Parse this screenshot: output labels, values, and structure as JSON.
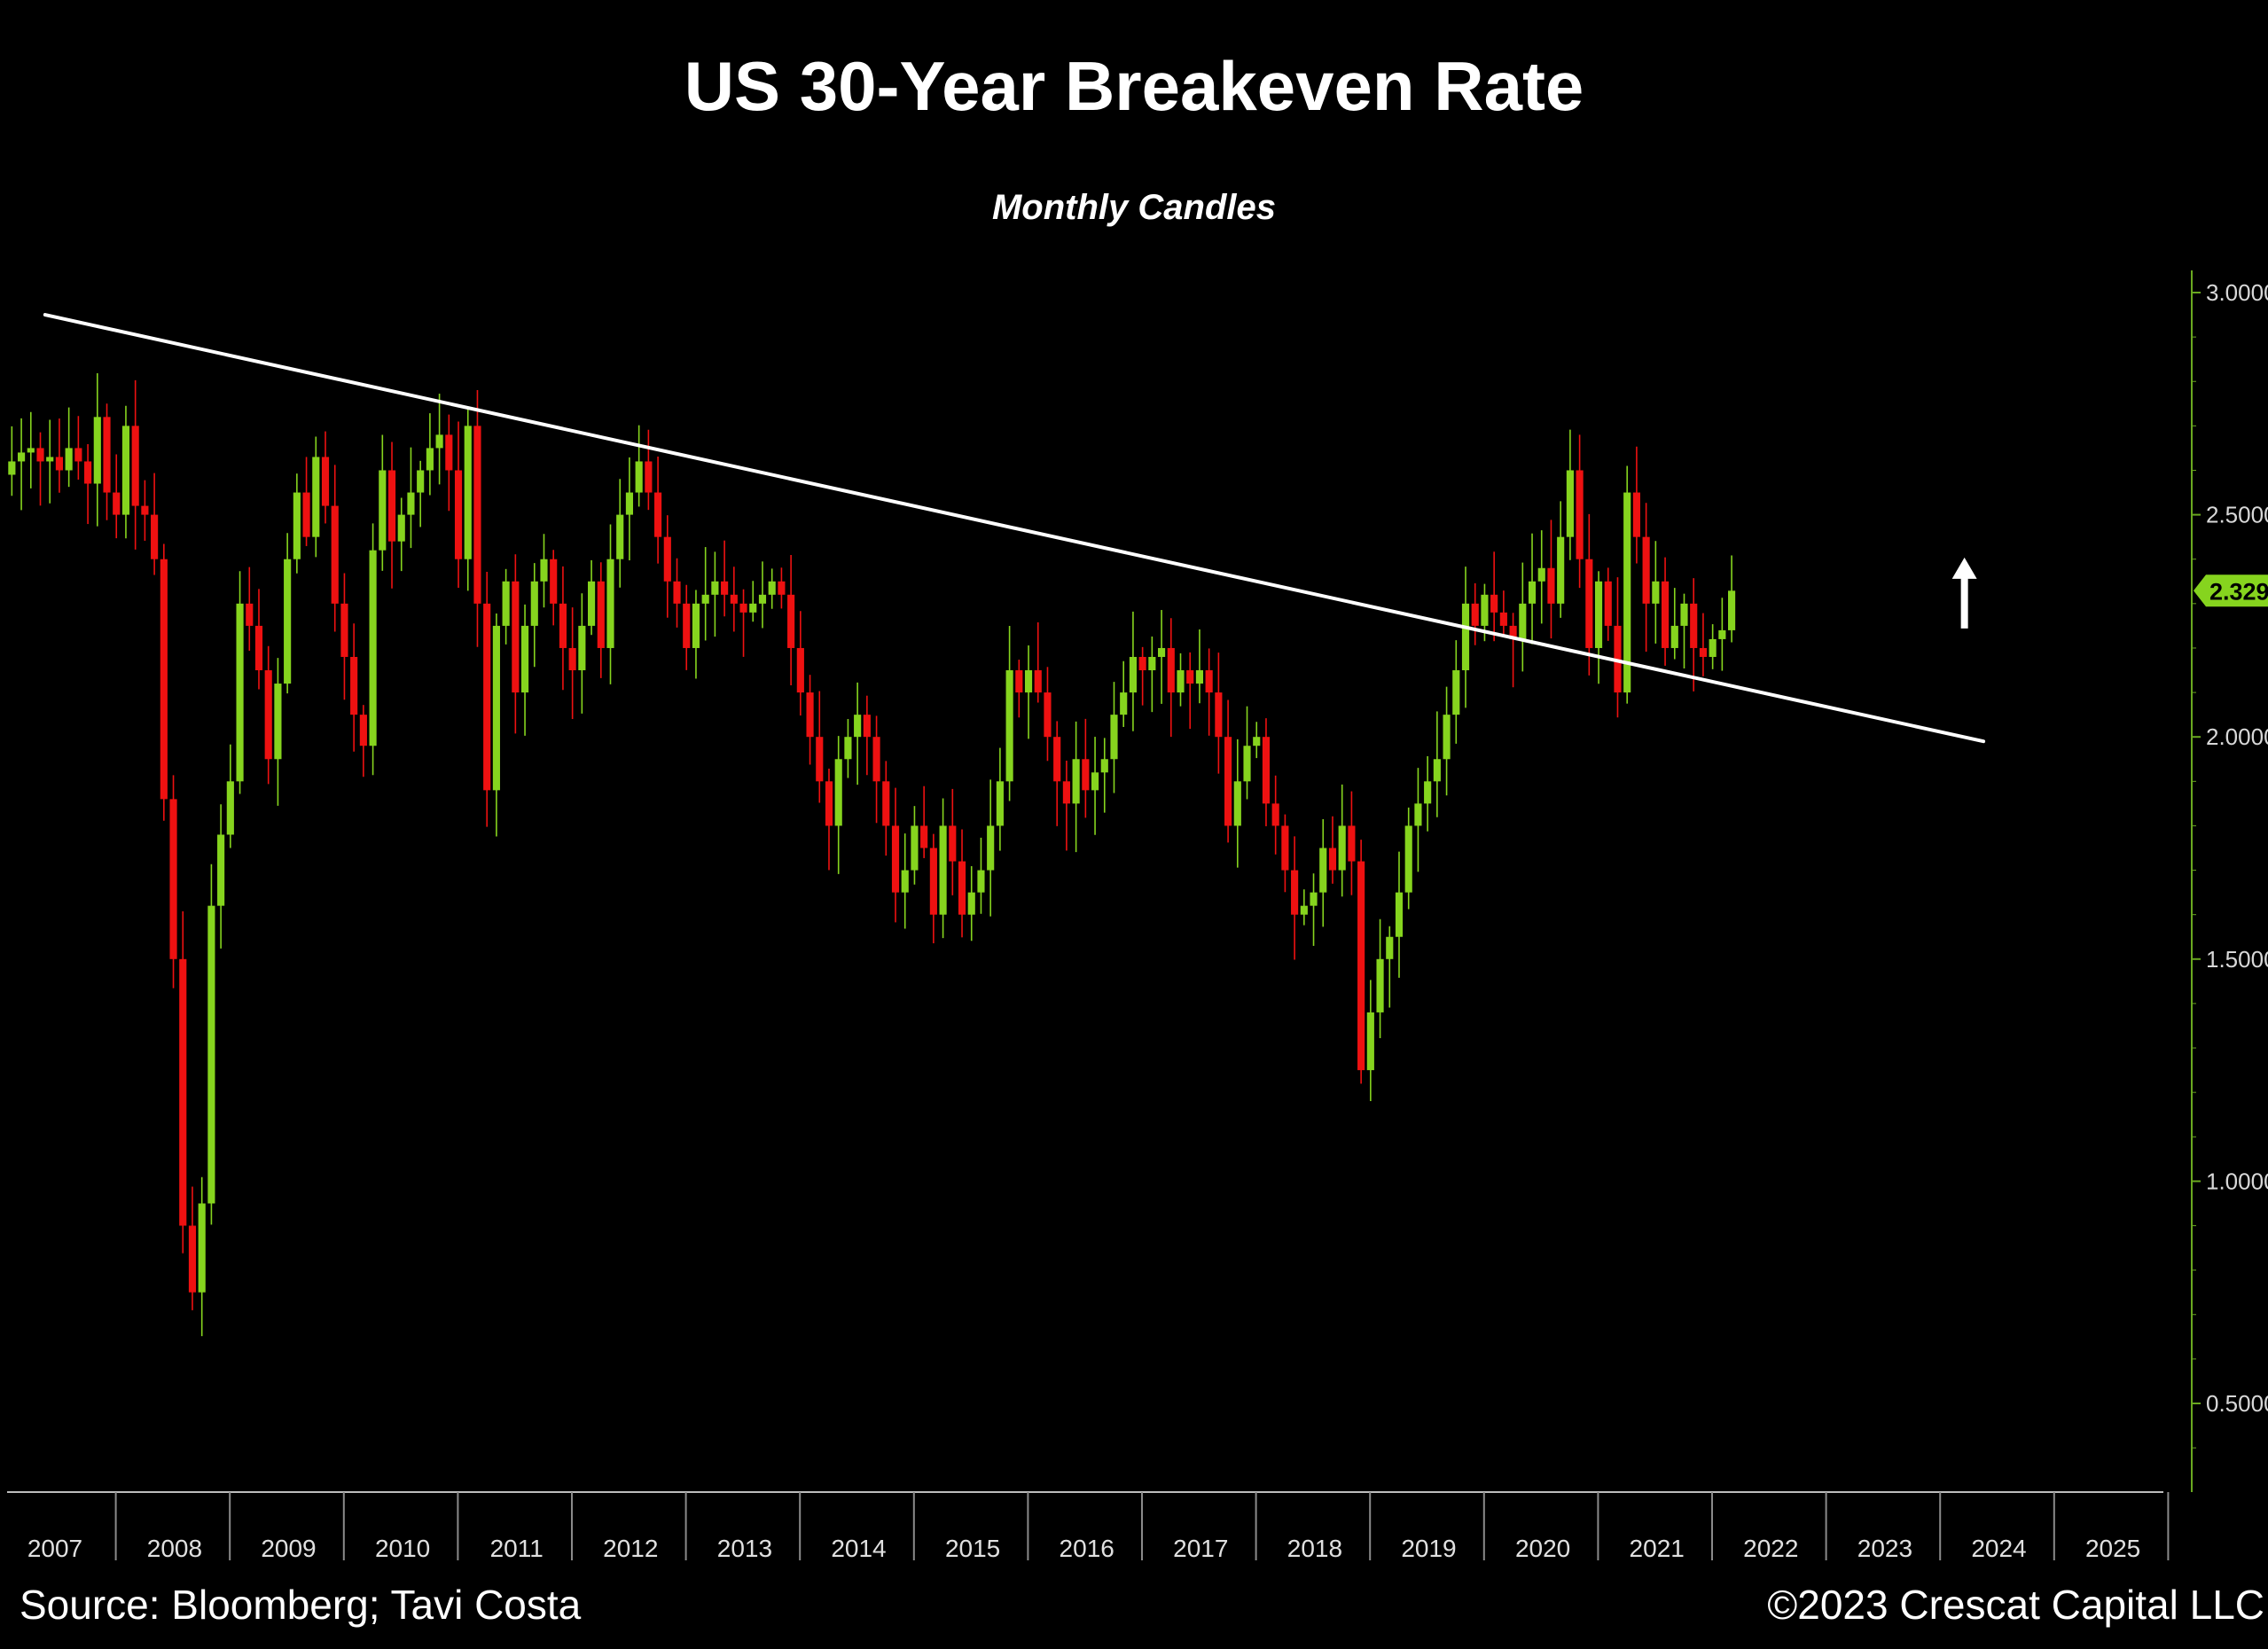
{
  "chart_data": {
    "type": "candlestick",
    "title": "US 30-Year Breakeven Rate",
    "subtitle": "Monthly Candles",
    "frequency": "monthly",
    "colors": {
      "up": "#86d41e",
      "down": "#ee1111",
      "background": "#000000",
      "axis": "#6aa820",
      "trendline": "#ffffff"
    },
    "y_axis": {
      "position": "right",
      "ylim": [
        0.3,
        3.05
      ],
      "ticks": [
        "0.5000",
        "1.0000",
        "1.5000",
        "2.0000",
        "2.5000",
        "3.0000"
      ]
    },
    "x_axis": {
      "xlim": [
        2006.95,
        2025.9
      ],
      "labels": [
        "2007",
        "2008",
        "2009",
        "2010",
        "2011",
        "2012",
        "2013",
        "2014",
        "2015",
        "2016",
        "2017",
        "2018",
        "2019",
        "2020",
        "2021",
        "2022",
        "2023",
        "2024",
        "2025"
      ]
    },
    "last_value": "2.329",
    "trendline": {
      "start": {
        "date": "2007-05",
        "value": 2.95
      },
      "end": {
        "date": "2024-05",
        "value": 1.99
      }
    },
    "annotation": {
      "type": "arrow-up",
      "date": "2024-03",
      "value": 2.28
    },
    "closes": [
      2.62,
      2.64,
      2.65,
      2.62,
      2.63,
      2.6,
      2.65,
      2.62,
      2.57,
      2.72,
      2.55,
      2.5,
      2.7,
      2.52,
      2.5,
      2.4,
      1.86,
      1.5,
      0.9,
      0.75,
      0.95,
      1.62,
      1.78,
      1.9,
      2.3,
      2.25,
      2.15,
      1.95,
      2.12,
      2.4,
      2.55,
      2.45,
      2.63,
      2.52,
      2.3,
      2.18,
      2.05,
      1.98,
      2.42,
      2.6,
      2.44,
      2.5,
      2.55,
      2.6,
      2.65,
      2.68,
      2.6,
      2.4,
      2.7,
      2.3,
      1.88,
      2.25,
      2.35,
      2.1,
      2.25,
      2.35,
      2.4,
      2.3,
      2.2,
      2.15,
      2.25,
      2.35,
      2.2,
      2.4,
      2.5,
      2.55,
      2.62,
      2.55,
      2.45,
      2.35,
      2.3,
      2.2,
      2.3,
      2.32,
      2.35,
      2.32,
      2.3,
      2.28,
      2.3,
      2.32,
      2.35,
      2.32,
      2.2,
      2.1,
      2.0,
      1.9,
      1.8,
      1.95,
      2.0,
      2.05,
      2.0,
      1.9,
      1.8,
      1.65,
      1.7,
      1.8,
      1.75,
      1.6,
      1.8,
      1.72,
      1.6,
      1.65,
      1.7,
      1.8,
      1.9,
      2.15,
      2.1,
      2.15,
      2.1,
      2.0,
      1.9,
      1.85,
      1.95,
      1.88,
      1.92,
      1.95,
      2.05,
      2.1,
      2.18,
      2.15,
      2.18,
      2.2,
      2.1,
      2.15,
      2.12,
      2.15,
      2.1,
      2.0,
      1.8,
      1.9,
      1.98,
      2.0,
      1.85,
      1.8,
      1.7,
      1.6,
      1.62,
      1.65,
      1.75,
      1.7,
      1.8,
      1.72,
      1.25,
      1.38,
      1.5,
      1.55,
      1.65,
      1.8,
      1.85,
      1.9,
      1.95,
      2.05,
      2.15,
      2.3,
      2.25,
      2.32,
      2.28,
      2.25,
      2.22,
      2.3,
      2.35,
      2.38,
      2.3,
      2.45,
      2.6,
      2.4,
      2.2,
      2.35,
      2.25,
      2.1,
      2.55,
      2.45,
      2.3,
      2.35,
      2.2,
      2.25,
      2.3,
      2.2,
      2.18,
      2.22,
      2.24,
      2.329
    ]
  },
  "footer": {
    "source": "Source: Bloomberg; Tavi Costa",
    "copyright": "©2023 Crescat Capital LLC"
  }
}
